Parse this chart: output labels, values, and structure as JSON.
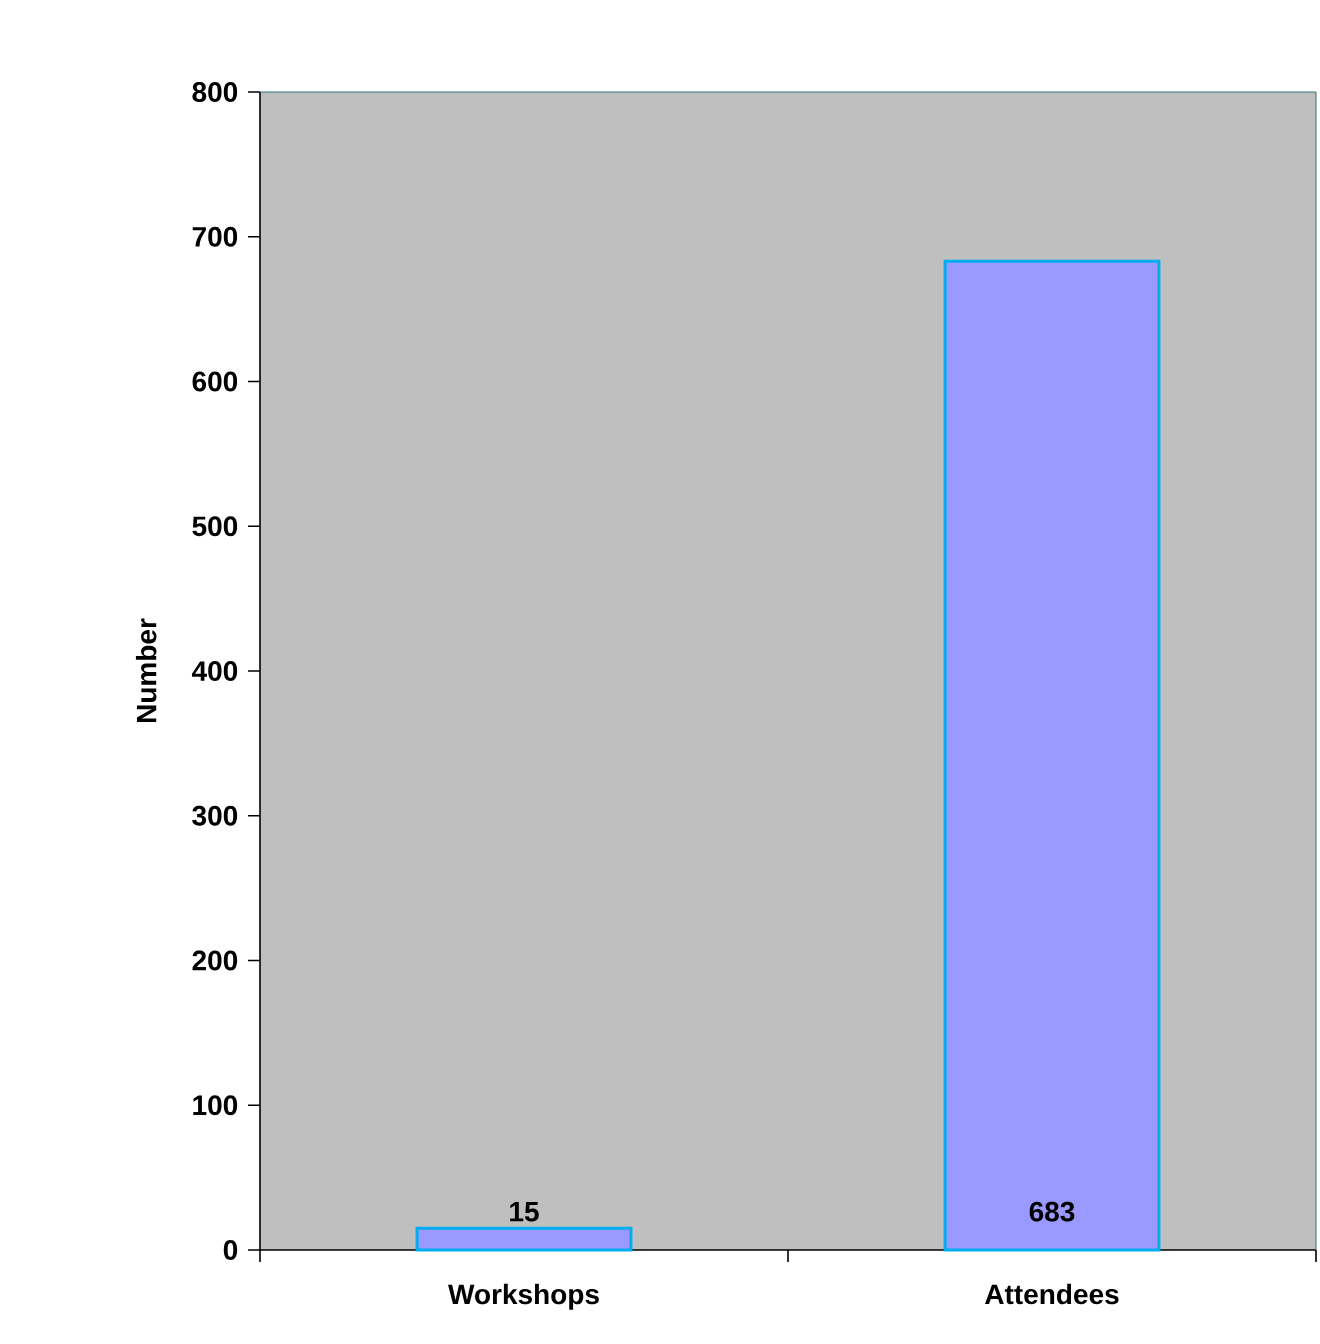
{
  "chart_data": {
    "type": "bar",
    "ylabel": "Number",
    "categories": [
      "Workshops",
      "Attendees"
    ],
    "values": [
      15,
      683
    ],
    "color": "#9999ff",
    "ylim": [
      0,
      800
    ],
    "yticks": [
      0,
      100,
      200,
      300,
      400,
      500,
      600,
      700,
      800
    ],
    "data_labels": true,
    "grid": false
  }
}
